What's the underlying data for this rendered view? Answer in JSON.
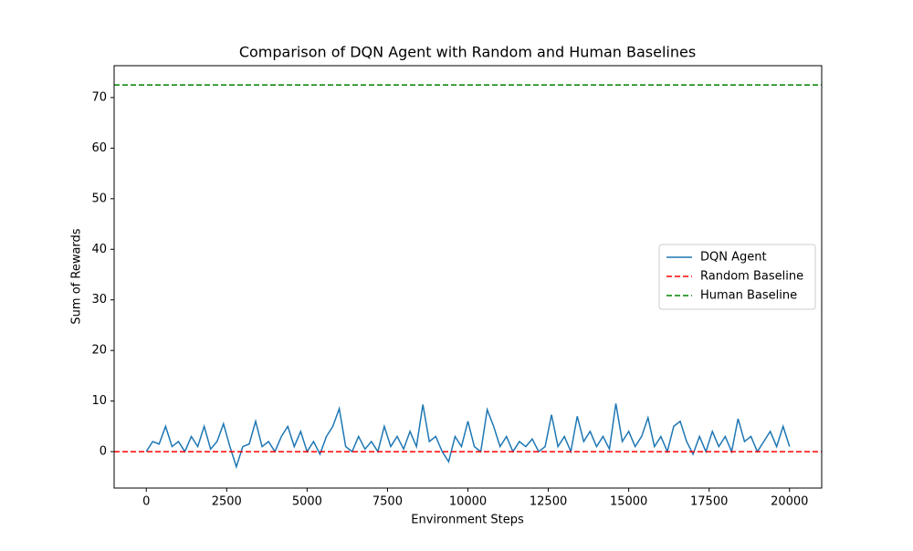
{
  "chart_data": {
    "type": "line",
    "title": "Comparison of DQN Agent with Random and Human Baselines",
    "xlabel": "Environment Steps",
    "ylabel": "Sum of Rewards",
    "series": [
      {
        "name": "DQN Agent",
        "color": "#1f77b4",
        "x": [
          0,
          200,
          400,
          600,
          800,
          1000,
          1200,
          1400,
          1600,
          1800,
          2000,
          2200,
          2400,
          2600,
          2800,
          3000,
          3200,
          3400,
          3600,
          3800,
          4000,
          4200,
          4400,
          4600,
          4800,
          5000,
          5200,
          5400,
          5600,
          5800,
          6000,
          6200,
          6400,
          6600,
          6800,
          7000,
          7200,
          7400,
          7600,
          7800,
          8000,
          8200,
          8400,
          8600,
          8800,
          9000,
          9200,
          9400,
          9600,
          9800,
          10000,
          10200,
          10400,
          10600,
          10800,
          11000,
          11200,
          11400,
          11600,
          11800,
          12000,
          12200,
          12400,
          12600,
          12800,
          13000,
          13200,
          13400,
          13600,
          13800,
          14000,
          14200,
          14400,
          14600,
          14800,
          15000,
          15200,
          15400,
          15600,
          15800,
          16000,
          16200,
          16400,
          16600,
          16800,
          17000,
          17200,
          17400,
          17600,
          17800,
          18000,
          18200,
          18400,
          18600,
          18800,
          19000,
          19200,
          19400,
          19600,
          19800,
          20000
        ],
        "values": [
          0,
          2,
          1.5,
          5,
          1,
          2,
          0,
          3,
          1,
          5,
          0.5,
          2,
          5.5,
          1,
          -3,
          1,
          1.5,
          6,
          1,
          2,
          0,
          3,
          5,
          1,
          4,
          0,
          2,
          -0.5,
          3,
          5,
          8.5,
          1,
          0,
          3,
          0.5,
          2,
          0,
          5,
          1,
          3,
          0.5,
          4,
          1,
          9.3,
          2,
          3,
          0,
          -2,
          3,
          1,
          6,
          1,
          0,
          8.3,
          5,
          1,
          3,
          0,
          2,
          1,
          2.5,
          0,
          1,
          7.3,
          1,
          3,
          0,
          7,
          2,
          4,
          1,
          3,
          0.5,
          9.5,
          2,
          4,
          1,
          3,
          6.7,
          1,
          3,
          0,
          5,
          6,
          2,
          -0.5,
          3,
          0,
          4,
          1,
          3,
          0,
          6.5,
          2,
          3,
          0,
          2,
          4,
          1,
          5,
          1
        ]
      }
    ],
    "hlines": [
      {
        "name": "Random Baseline",
        "color": "#ff0000",
        "y": 0
      },
      {
        "name": "Human Baseline",
        "color": "#008000",
        "y": 72.5
      }
    ],
    "xlim": [
      -1000,
      21000
    ],
    "ylim": [
      -7.2,
      76.3
    ],
    "xticks": [
      0,
      2500,
      5000,
      7500,
      10000,
      12500,
      15000,
      17500,
      20000
    ],
    "yticks": [
      0,
      10,
      20,
      30,
      40,
      50,
      60,
      70
    ],
    "legend": "center right"
  }
}
